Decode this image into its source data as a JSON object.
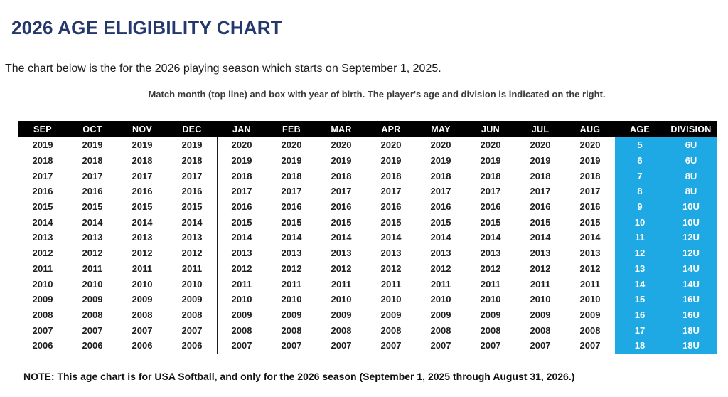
{
  "header": {
    "title": "2026 AGE ELIGIBILITY CHART"
  },
  "intro": {
    "subtitle": "The chart below is the for the 2026 playing season which starts on September 1, 2025.",
    "instruction": "Match month (top line) and box with year of birth. The player's age and division is indicated on the right."
  },
  "footer": {
    "note": "NOTE: This age chart is for USA Softball, and only for the 2026 season (September 1, 2025 through August 31, 2026.)"
  },
  "colors": {
    "title_navy": "#24386e",
    "table_header_bg": "#000000",
    "table_header_text": "#ffffff",
    "age_division_bg": "#1ea9e5",
    "age_division_text": "#ffffff",
    "year_text": "#1f1f1f"
  },
  "chart_data": {
    "type": "table",
    "columns": [
      "SEP",
      "OCT",
      "NOV",
      "DEC",
      "JAN",
      "FEB",
      "MAR",
      "APR",
      "MAY",
      "JUN",
      "JUL",
      "AUG",
      "AGE",
      "DIVISION"
    ],
    "month_columns": 12,
    "divider_after_column": "DEC",
    "rows": [
      {
        "years": [
          "2019",
          "2019",
          "2019",
          "2019",
          "2020",
          "2020",
          "2020",
          "2020",
          "2020",
          "2020",
          "2020",
          "2020"
        ],
        "age": "5",
        "division": "6U"
      },
      {
        "years": [
          "2018",
          "2018",
          "2018",
          "2018",
          "2019",
          "2019",
          "2019",
          "2019",
          "2019",
          "2019",
          "2019",
          "2019"
        ],
        "age": "6",
        "division": "6U"
      },
      {
        "years": [
          "2017",
          "2017",
          "2017",
          "2017",
          "2018",
          "2018",
          "2018",
          "2018",
          "2018",
          "2018",
          "2018",
          "2018"
        ],
        "age": "7",
        "division": "8U"
      },
      {
        "years": [
          "2016",
          "2016",
          "2016",
          "2016",
          "2017",
          "2017",
          "2017",
          "2017",
          "2017",
          "2017",
          "2017",
          "2017"
        ],
        "age": "8",
        "division": "8U"
      },
      {
        "years": [
          "2015",
          "2015",
          "2015",
          "2015",
          "2016",
          "2016",
          "2016",
          "2016",
          "2016",
          "2016",
          "2016",
          "2016"
        ],
        "age": "9",
        "division": "10U"
      },
      {
        "years": [
          "2014",
          "2014",
          "2014",
          "2014",
          "2015",
          "2015",
          "2015",
          "2015",
          "2015",
          "2015",
          "2015",
          "2015"
        ],
        "age": "10",
        "division": "10U"
      },
      {
        "years": [
          "2013",
          "2013",
          "2013",
          "2013",
          "2014",
          "2014",
          "2014",
          "2014",
          "2014",
          "2014",
          "2014",
          "2014"
        ],
        "age": "11",
        "division": "12U"
      },
      {
        "years": [
          "2012",
          "2012",
          "2012",
          "2012",
          "2013",
          "2013",
          "2013",
          "2013",
          "2013",
          "2013",
          "2013",
          "2013"
        ],
        "age": "12",
        "division": "12U"
      },
      {
        "years": [
          "2011",
          "2011",
          "2011",
          "2011",
          "2012",
          "2012",
          "2012",
          "2012",
          "2012",
          "2012",
          "2012",
          "2012"
        ],
        "age": "13",
        "division": "14U"
      },
      {
        "years": [
          "2010",
          "2010",
          "2010",
          "2010",
          "2011",
          "2011",
          "2011",
          "2011",
          "2011",
          "2011",
          "2011",
          "2011"
        ],
        "age": "14",
        "division": "14U"
      },
      {
        "years": [
          "2009",
          "2009",
          "2009",
          "2009",
          "2010",
          "2010",
          "2010",
          "2010",
          "2010",
          "2010",
          "2010",
          "2010"
        ],
        "age": "15",
        "division": "16U"
      },
      {
        "years": [
          "2008",
          "2008",
          "2008",
          "2008",
          "2009",
          "2009",
          "2009",
          "2009",
          "2009",
          "2009",
          "2009",
          "2009"
        ],
        "age": "16",
        "division": "16U"
      },
      {
        "years": [
          "2007",
          "2007",
          "2007",
          "2007",
          "2008",
          "2008",
          "2008",
          "2008",
          "2008",
          "2008",
          "2008",
          "2008"
        ],
        "age": "17",
        "division": "18U"
      },
      {
        "years": [
          "2006",
          "2006",
          "2006",
          "2006",
          "2007",
          "2007",
          "2007",
          "2007",
          "2007",
          "2007",
          "2007",
          "2007"
        ],
        "age": "18",
        "division": "18U"
      }
    ]
  }
}
